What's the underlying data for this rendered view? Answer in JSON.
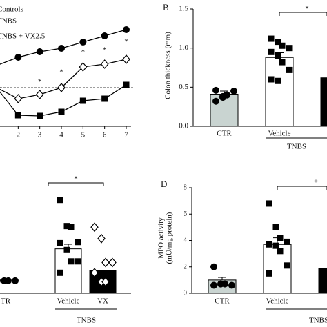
{
  "chart_data": [
    {
      "type": "line",
      "x": [
        1,
        2,
        3,
        4,
        5,
        6,
        7
      ],
      "xlim": [
        1,
        7
      ],
      "xticks": [
        2,
        3,
        4,
        5,
        6,
        7
      ],
      "ylim": [
        -5,
        10
      ],
      "reference_line": 0,
      "series": [
        {
          "name": "Controls",
          "color": "#000000",
          "marker": "circle",
          "values": [
            3.2,
            4.4,
            5.2,
            5.7,
            6.6,
            7.5,
            8.4
          ]
        },
        {
          "name": "TNBS",
          "color": "#000000",
          "marker": "square",
          "values": [
            0,
            -4.0,
            -4.1,
            -3.5,
            -1.9,
            -1.6,
            0.4
          ]
        },
        {
          "name": "TNBS + VX2.5",
          "color": "#000000",
          "marker": "diamond-open",
          "values": [
            0,
            -1.6,
            -1.0,
            0,
            3.0,
            3.4,
            4.1
          ]
        }
      ],
      "annotations": [
        {
          "text": "*",
          "x": 3,
          "y": 0.8
        },
        {
          "text": "*",
          "x": 4,
          "y": 2.2
        },
        {
          "text": "*",
          "x": 5,
          "y": 5.1
        },
        {
          "text": "*",
          "x": 6,
          "y": 5.4
        },
        {
          "text": "*",
          "x": 7,
          "y": 6.6
        }
      ]
    },
    {
      "type": "bar",
      "panel_label": "B",
      "y_label": "Colon thickness (mm)",
      "categories": [
        "CTR",
        "Vehicle",
        null
      ],
      "values": [
        0.41,
        0.88,
        0.62
      ],
      "errors": [
        0.04,
        0.06,
        null
      ],
      "colors": [
        "#c9d4d1",
        "#ffffff",
        "#000000"
      ],
      "markers": [
        "circle",
        "square",
        "diamond-open"
      ],
      "points": [
        [
          0.32,
          0.37,
          0.4,
          0.45,
          0.46,
          0.38
        ],
        [
          1.12,
          1.08,
          1.03,
          1.0,
          0.95,
          0.9,
          0.82,
          0.72,
          0.6,
          0.58
        ],
        []
      ],
      "ylim": [
        0,
        1.5
      ],
      "yticks": [
        {
          "value": 0,
          "label": "0.0"
        },
        0.5,
        {
          "value": 1,
          "label": "1.0"
        },
        1.5
      ],
      "group_label": "TNBS",
      "significance": "*"
    },
    {
      "type": "bar",
      "categories": [
        "TR",
        "Vehicle",
        "VX"
      ],
      "values": [
        null,
        3.9,
        2.0
      ],
      "errors": [
        null,
        0.4,
        0.5
      ],
      "colors": [
        "#c9d4d1",
        "#ffffff",
        "#000000"
      ],
      "markers": [
        "circle",
        "square",
        "diamond-open"
      ],
      "points": [
        [
          1.1,
          1.1,
          1.1,
          1.1
        ],
        [
          8.2,
          5.9,
          5.8,
          4.5,
          4.4,
          3.8,
          2.8,
          2.8,
          1.8
        ],
        [
          5.8,
          4.8,
          2.7,
          2.7,
          1.8,
          1.0,
          1.0
        ]
      ],
      "ylim": [
        0,
        10
      ],
      "group_label": "TNBS",
      "significance": "*"
    },
    {
      "type": "bar",
      "panel_label": "D",
      "y_label": [
        "MPO activity",
        "(mU/mg protein)"
      ],
      "categories": [
        "CTR",
        "Vehicle",
        null
      ],
      "values": [
        1.0,
        3.7,
        1.9
      ],
      "errors": [
        0.2,
        0.5,
        null
      ],
      "colors": [
        "#c9d4d1",
        "#ffffff",
        "#000000"
      ],
      "markers": [
        "circle",
        "square",
        "diamond-open"
      ],
      "points": [
        [
          2.0,
          0.7,
          0.7,
          0.6,
          0.6,
          0.7
        ],
        [
          6.8,
          5.0,
          4.2,
          3.9,
          3.7,
          3.6,
          3.2,
          2.1,
          1.5
        ],
        []
      ],
      "ylim": [
        0,
        8
      ],
      "yticks": [
        0,
        2,
        4,
        6,
        8
      ],
      "group_label": "TNBS",
      "significance": "*"
    }
  ]
}
